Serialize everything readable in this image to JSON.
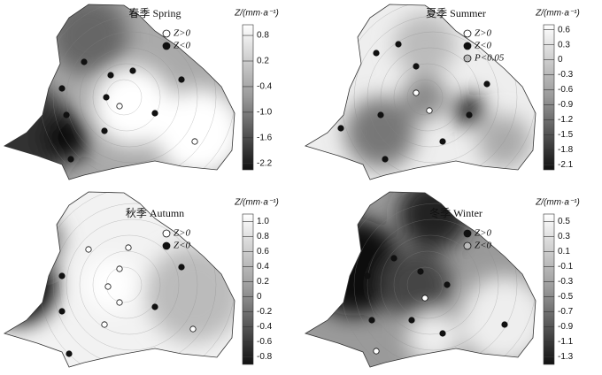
{
  "panels": [
    {
      "title": "春季 Spring",
      "unit_label": "Z/(mm·a⁻¹)",
      "legend": [
        {
          "label": "Z>0",
          "color": "#ffffff"
        },
        {
          "label": "Z<0",
          "color": "#111111"
        }
      ],
      "colorbar": {
        "ylim": [
          -2.35,
          1.05
        ],
        "ticks": [
          0.8,
          0.2,
          -0.4,
          {
            "value": -1,
            "label": "-1.0"
          },
          -1.6,
          -2.2
        ]
      }
    },
    {
      "title": "夏季 Summer",
      "unit_label": "Z/(mm·a⁻¹)",
      "legend": [
        {
          "label": "Z>0",
          "color": "#ffffff"
        },
        {
          "label": "Z<0",
          "color": "#111111"
        },
        {
          "label": "P<0.05",
          "color": "#bbbbbb"
        }
      ],
      "colorbar": {
        "ylim": [
          -2.2,
          0.7
        ],
        "ticks": [
          0.6,
          0.3,
          0,
          -0.3,
          -0.6,
          -0.9,
          -1.2,
          -1.5,
          -1.8,
          -2.1
        ]
      }
    },
    {
      "title": "秋季 Autumn",
      "unit_label": "Z/(mm·a⁻¹)",
      "legend": [
        {
          "label": "Z>0",
          "color": "#ffffff"
        },
        {
          "label": "Z<0",
          "color": "#111111"
        }
      ],
      "colorbar": {
        "ylim": [
          -0.9,
          1.1
        ],
        "ticks": [
          {
            "value": 1,
            "label": "1.0"
          },
          0.8,
          0.6,
          0.4,
          0.2,
          0,
          -0.2,
          -0.4,
          -0.6,
          -0.8
        ]
      }
    },
    {
      "title": "冬季 Winter",
      "unit_label": "Z/(mm·a⁻¹)",
      "legend": [
        {
          "label": "Z>0",
          "color": "#111111"
        },
        {
          "label": "Z<0",
          "color": "#bbbbbb"
        }
      ],
      "colorbar": {
        "ylim": [
          -1.4,
          0.6
        ],
        "ticks": [
          0.5,
          0.3,
          0.1,
          -0.1,
          -0.3,
          -0.5,
          -0.7,
          -0.9,
          -1.1,
          -1.3
        ]
      }
    }
  ]
}
